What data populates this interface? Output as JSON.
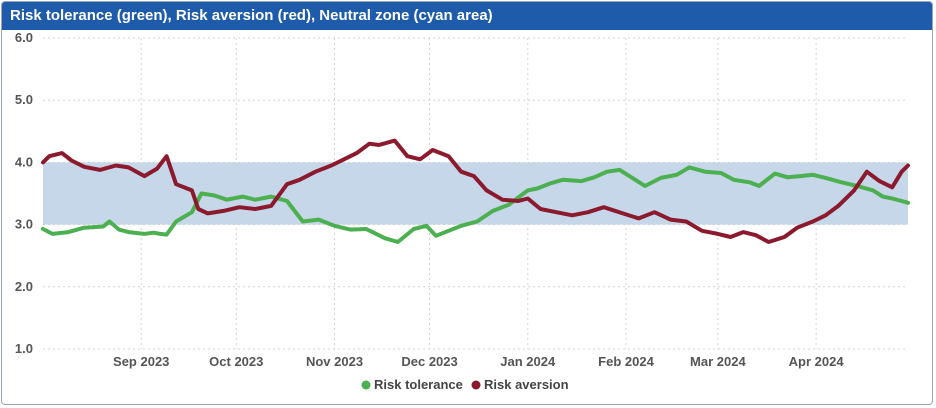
{
  "title": "Risk tolerance (green), Risk aversion (red), Neutral zone (cyan area)",
  "chart_data": {
    "type": "line",
    "x_start": "2023-08-01",
    "x_end": "2024-04-30",
    "ylim": [
      1.0,
      6.0
    ],
    "yticks": [
      "1.0",
      "2.0",
      "3.0",
      "4.0",
      "5.0",
      "6.0"
    ],
    "xticks": [
      {
        "label": "Sep 2023",
        "date": "2023-09-01"
      },
      {
        "label": "Oct 2023",
        "date": "2023-10-01"
      },
      {
        "label": "Nov 2023",
        "date": "2023-11-01"
      },
      {
        "label": "Dec 2023",
        "date": "2023-12-01"
      },
      {
        "label": "Jan 2024",
        "date": "2024-01-01"
      },
      {
        "label": "Feb 2024",
        "date": "2024-02-01"
      },
      {
        "label": "Mar 2024",
        "date": "2024-03-01"
      },
      {
        "label": "Apr 2024",
        "date": "2024-04-01"
      }
    ],
    "neutral_zone": {
      "from": 3.0,
      "to": 4.0,
      "color": "#c5d7e8"
    },
    "grid": true,
    "legend_position": "bottom",
    "series": [
      {
        "name": "Risk tolerance",
        "color": "#4caf50",
        "points": [
          [
            "2023-08-01",
            2.93
          ],
          [
            "2023-08-04",
            2.85
          ],
          [
            "2023-08-09",
            2.88
          ],
          [
            "2023-08-14",
            2.95
          ],
          [
            "2023-08-20",
            2.97
          ],
          [
            "2023-08-22",
            3.05
          ],
          [
            "2023-08-25",
            2.92
          ],
          [
            "2023-08-28",
            2.88
          ],
          [
            "2023-09-02",
            2.85
          ],
          [
            "2023-09-05",
            2.87
          ],
          [
            "2023-09-07",
            2.85
          ],
          [
            "2023-09-09",
            2.84
          ],
          [
            "2023-09-12",
            3.05
          ],
          [
            "2023-09-17",
            3.2
          ],
          [
            "2023-09-20",
            3.5
          ],
          [
            "2023-09-24",
            3.47
          ],
          [
            "2023-09-28",
            3.4
          ],
          [
            "2023-10-03",
            3.45
          ],
          [
            "2023-10-07",
            3.4
          ],
          [
            "2023-10-12",
            3.45
          ],
          [
            "2023-10-17",
            3.38
          ],
          [
            "2023-10-22",
            3.05
          ],
          [
            "2023-10-27",
            3.08
          ],
          [
            "2023-11-01",
            2.98
          ],
          [
            "2023-11-06",
            2.92
          ],
          [
            "2023-11-11",
            2.93
          ],
          [
            "2023-11-17",
            2.78
          ],
          [
            "2023-11-21",
            2.72
          ],
          [
            "2023-11-26",
            2.93
          ],
          [
            "2023-11-30",
            2.98
          ],
          [
            "2023-12-03",
            2.82
          ],
          [
            "2023-12-07",
            2.9
          ],
          [
            "2023-12-11",
            2.98
          ],
          [
            "2023-12-16",
            3.05
          ],
          [
            "2023-12-21",
            3.22
          ],
          [
            "2023-12-26",
            3.32
          ],
          [
            "2024-01-01",
            3.55
          ],
          [
            "2024-01-04",
            3.58
          ],
          [
            "2024-01-08",
            3.66
          ],
          [
            "2024-01-12",
            3.72
          ],
          [
            "2024-01-18",
            3.7
          ],
          [
            "2024-01-22",
            3.76
          ],
          [
            "2024-01-26",
            3.85
          ],
          [
            "2024-01-30",
            3.88
          ],
          [
            "2024-02-03",
            3.75
          ],
          [
            "2024-02-07",
            3.62
          ],
          [
            "2024-02-12",
            3.75
          ],
          [
            "2024-02-17",
            3.8
          ],
          [
            "2024-02-21",
            3.92
          ],
          [
            "2024-02-26",
            3.85
          ],
          [
            "2024-03-02",
            3.83
          ],
          [
            "2024-03-06",
            3.72
          ],
          [
            "2024-03-11",
            3.68
          ],
          [
            "2024-03-14",
            3.62
          ],
          [
            "2024-03-19",
            3.82
          ],
          [
            "2024-03-23",
            3.76
          ],
          [
            "2024-03-27",
            3.78
          ],
          [
            "2024-03-31",
            3.8
          ],
          [
            "2024-04-04",
            3.75
          ],
          [
            "2024-04-09",
            3.68
          ],
          [
            "2024-04-14",
            3.62
          ],
          [
            "2024-04-19",
            3.55
          ],
          [
            "2024-04-22",
            3.45
          ],
          [
            "2024-04-25",
            3.42
          ],
          [
            "2024-04-28",
            3.38
          ],
          [
            "2024-04-30",
            3.35
          ]
        ]
      },
      {
        "name": "Risk aversion",
        "color": "#8b1a2e",
        "points": [
          [
            "2023-08-01",
            4.0
          ],
          [
            "2023-08-03",
            4.1
          ],
          [
            "2023-08-07",
            4.15
          ],
          [
            "2023-08-10",
            4.03
          ],
          [
            "2023-08-14",
            3.93
          ],
          [
            "2023-08-19",
            3.88
          ],
          [
            "2023-08-24",
            3.95
          ],
          [
            "2023-08-28",
            3.92
          ],
          [
            "2023-09-02",
            3.78
          ],
          [
            "2023-09-06",
            3.9
          ],
          [
            "2023-09-09",
            4.1
          ],
          [
            "2023-09-12",
            3.65
          ],
          [
            "2023-09-17",
            3.55
          ],
          [
            "2023-09-19",
            3.25
          ],
          [
            "2023-09-22",
            3.18
          ],
          [
            "2023-09-27",
            3.22
          ],
          [
            "2023-10-02",
            3.28
          ],
          [
            "2023-10-07",
            3.25
          ],
          [
            "2023-10-12",
            3.3
          ],
          [
            "2023-10-17",
            3.65
          ],
          [
            "2023-10-21",
            3.72
          ],
          [
            "2023-10-26",
            3.85
          ],
          [
            "2023-10-31",
            3.95
          ],
          [
            "2023-11-04",
            4.05
          ],
          [
            "2023-11-08",
            4.15
          ],
          [
            "2023-11-12",
            4.3
          ],
          [
            "2023-11-15",
            4.28
          ],
          [
            "2023-11-20",
            4.35
          ],
          [
            "2023-11-24",
            4.1
          ],
          [
            "2023-11-28",
            4.05
          ],
          [
            "2023-12-02",
            4.2
          ],
          [
            "2023-12-07",
            4.1
          ],
          [
            "2023-12-11",
            3.85
          ],
          [
            "2023-12-15",
            3.78
          ],
          [
            "2023-12-19",
            3.55
          ],
          [
            "2023-12-24",
            3.4
          ],
          [
            "2023-12-29",
            3.38
          ],
          [
            "2024-01-01",
            3.42
          ],
          [
            "2024-01-05",
            3.25
          ],
          [
            "2024-01-10",
            3.2
          ],
          [
            "2024-01-15",
            3.15
          ],
          [
            "2024-01-20",
            3.2
          ],
          [
            "2024-01-25",
            3.28
          ],
          [
            "2024-01-31",
            3.18
          ],
          [
            "2024-02-05",
            3.1
          ],
          [
            "2024-02-10",
            3.2
          ],
          [
            "2024-02-15",
            3.08
          ],
          [
            "2024-02-20",
            3.05
          ],
          [
            "2024-02-25",
            2.9
          ],
          [
            "2024-03-01",
            2.85
          ],
          [
            "2024-03-05",
            2.8
          ],
          [
            "2024-03-09",
            2.88
          ],
          [
            "2024-03-13",
            2.83
          ],
          [
            "2024-03-17",
            2.72
          ],
          [
            "2024-03-22",
            2.8
          ],
          [
            "2024-03-26",
            2.95
          ],
          [
            "2024-03-31",
            3.05
          ],
          [
            "2024-04-04",
            3.15
          ],
          [
            "2024-04-08",
            3.3
          ],
          [
            "2024-04-13",
            3.55
          ],
          [
            "2024-04-17",
            3.85
          ],
          [
            "2024-04-21",
            3.7
          ],
          [
            "2024-04-25",
            3.6
          ],
          [
            "2024-04-28",
            3.85
          ],
          [
            "2024-04-30",
            3.95
          ]
        ]
      }
    ]
  }
}
